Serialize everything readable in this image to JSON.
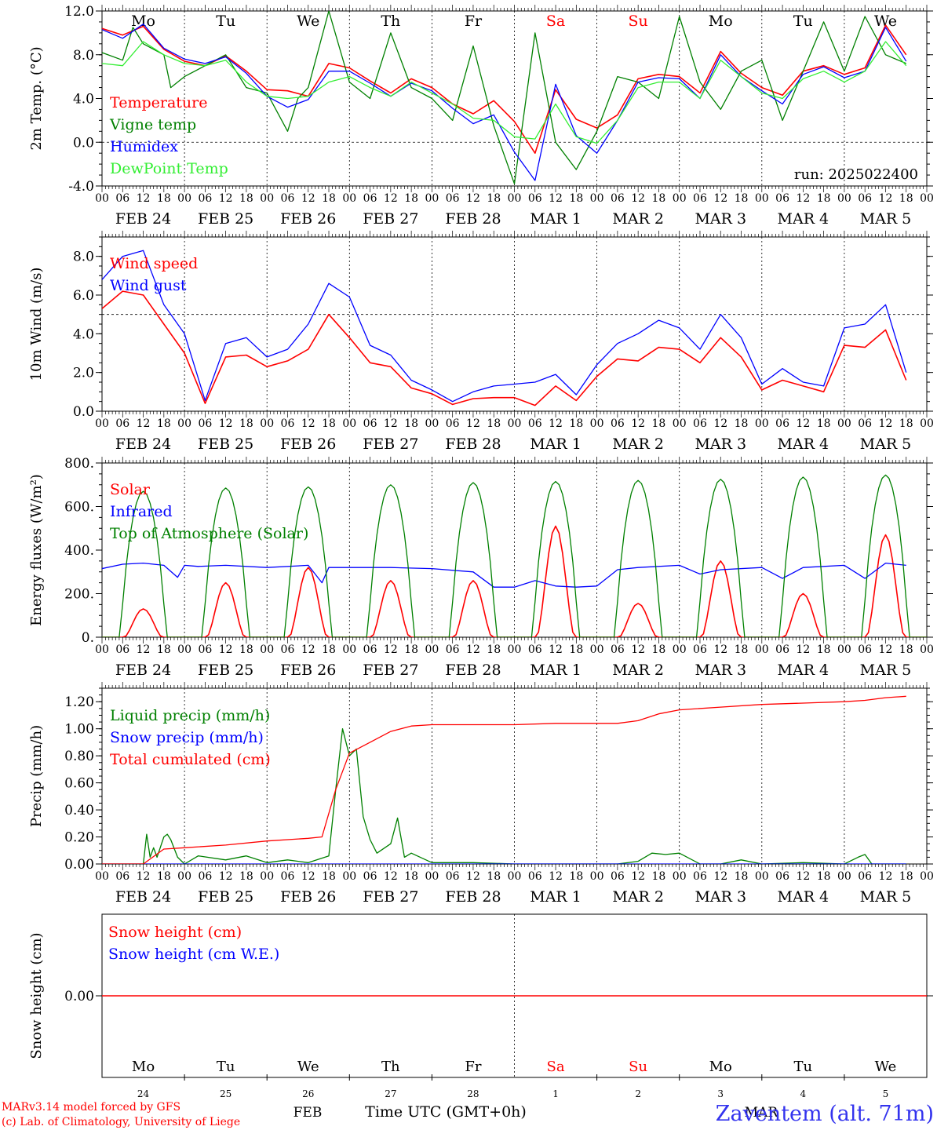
{
  "colors": {
    "red": "#ff0000",
    "green": "#008000",
    "blue": "#0000ff",
    "lightgreen": "#33ee33"
  },
  "x_axis": {
    "hour_ticks": [
      "00",
      "06",
      "12",
      "18"
    ],
    "date_labels": [
      "FEB 24",
      "FEB 25",
      "FEB 26",
      "FEB 27",
      "FEB 28",
      "MAR  1",
      "MAR  2",
      "MAR  3",
      "MAR  4",
      "MAR  5"
    ],
    "weekdays": [
      "Mo",
      "Tu",
      "We",
      "Th",
      "Fr",
      "Sa",
      "Su",
      "Mo",
      "Tu",
      "We"
    ],
    "weekday_colors": [
      "#000000",
      "#000000",
      "#000000",
      "#000000",
      "#000000",
      "#ff0000",
      "#ff0000",
      "#000000",
      "#000000",
      "#000000"
    ],
    "day_numbers": [
      "24",
      "25",
      "26",
      "27",
      "28",
      "1",
      "2",
      "3",
      "4",
      "5"
    ],
    "month_labels": [
      "FEB",
      "MAR"
    ],
    "title": "Time UTC (GMT+0h)"
  },
  "footer": {
    "model": "MARv3.14 model forced by GFS",
    "lab": "(c) Lab. of Climatology, University of Liege",
    "station": "Zaventem (alt. 71m)"
  },
  "chart_data": [
    {
      "type": "line",
      "ylabel": "2m Temp. (°C)",
      "ylim": [
        -4,
        12
      ],
      "yticks": [
        "-4.0",
        "0.0",
        "4.0",
        "8.0",
        "12.0"
      ],
      "annotation": "run: 2025022400",
      "show_weekdays": true,
      "series": [
        {
          "name": "Temperature",
          "color": "#ff0000",
          "x": [
            0,
            6,
            12,
            18,
            24,
            30,
            36,
            42,
            48,
            54,
            60,
            66,
            72,
            78,
            84,
            90,
            96,
            102,
            108,
            114,
            120,
            126,
            132,
            138,
            144,
            150,
            156,
            162,
            168,
            174,
            180,
            186,
            192,
            198,
            204,
            210,
            216,
            222,
            228,
            234
          ],
          "values": [
            10.4,
            9.8,
            10.6,
            8.5,
            7.4,
            7.0,
            7.9,
            6.5,
            4.8,
            4.7,
            4.2,
            7.2,
            6.8,
            5.6,
            4.5,
            5.8,
            5.0,
            3.5,
            2.6,
            3.8,
            1.9,
            -1.0,
            4.8,
            2.1,
            1.3,
            2.5,
            5.8,
            6.2,
            6.0,
            4.5,
            8.3,
            6.3,
            5.0,
            4.3,
            6.5,
            7.0,
            6.2,
            6.8,
            10.7,
            8.0
          ]
        },
        {
          "name": "Vigne temp",
          "color": "#008000",
          "x": [
            0,
            6,
            9,
            12,
            18,
            20,
            24,
            30,
            36,
            42,
            48,
            54,
            57,
            60,
            66,
            72,
            78,
            84,
            90,
            96,
            102,
            108,
            114,
            120,
            126,
            132,
            138,
            144,
            150,
            156,
            162,
            168,
            174,
            180,
            186,
            192,
            198,
            204,
            210,
            216,
            222,
            228,
            234
          ],
          "values": [
            8.2,
            7.5,
            10.5,
            9.0,
            8.0,
            5.0,
            6.0,
            7.0,
            8.0,
            5.0,
            4.5,
            1.0,
            4.0,
            5.0,
            12.0,
            5.5,
            4.0,
            10.0,
            5.0,
            4.0,
            2.0,
            8.8,
            1.5,
            -3.8,
            10.0,
            0.0,
            -2.5,
            1.0,
            6.0,
            5.5,
            4.0,
            11.5,
            5.5,
            3.0,
            6.5,
            7.5,
            2.0,
            6.5,
            11.0,
            6.5,
            11.5,
            8.0,
            7.2
          ]
        },
        {
          "name": "Humidex",
          "color": "#0000ff",
          "x": [
            0,
            6,
            12,
            18,
            24,
            30,
            36,
            42,
            48,
            54,
            60,
            66,
            72,
            78,
            84,
            90,
            96,
            102,
            108,
            114,
            120,
            126,
            132,
            138,
            144,
            150,
            156,
            162,
            168,
            174,
            180,
            186,
            192,
            198,
            204,
            210,
            216,
            222,
            228,
            234
          ],
          "values": [
            10.3,
            9.5,
            10.8,
            8.6,
            7.6,
            7.2,
            7.8,
            6.3,
            4.2,
            3.2,
            3.9,
            6.5,
            6.5,
            5.4,
            4.2,
            5.4,
            4.7,
            3.1,
            1.7,
            2.5,
            -0.9,
            -3.5,
            5.3,
            0.6,
            -1.0,
            2.0,
            5.5,
            5.9,
            5.8,
            4.0,
            8.0,
            6.0,
            4.7,
            3.5,
            6.2,
            6.9,
            5.9,
            6.5,
            10.5,
            7.4
          ]
        },
        {
          "name": "DewPoint Temp",
          "color": "#33ee33",
          "x": [
            0,
            6,
            12,
            18,
            24,
            30,
            36,
            42,
            48,
            54,
            60,
            66,
            72,
            78,
            84,
            90,
            96,
            102,
            108,
            114,
            120,
            126,
            132,
            138,
            144,
            150,
            156,
            162,
            168,
            174,
            180,
            186,
            192,
            198,
            204,
            210,
            216,
            222,
            228,
            234
          ],
          "values": [
            7.2,
            7.0,
            9.2,
            8.0,
            7.2,
            7.0,
            7.5,
            5.5,
            4.2,
            4.0,
            4.2,
            5.5,
            6.0,
            5.0,
            4.2,
            5.5,
            4.5,
            3.5,
            2.2,
            2.0,
            0.5,
            0.3,
            3.5,
            0.5,
            -0.1,
            2.0,
            5.0,
            5.5,
            5.5,
            4.0,
            7.5,
            6.0,
            4.5,
            4.0,
            5.8,
            6.5,
            5.5,
            6.5,
            9.2,
            7.0
          ]
        }
      ]
    },
    {
      "type": "line",
      "ylabel": "10m Wind (m/s)",
      "ylim": [
        0,
        9
      ],
      "yticks": [
        "0.0",
        "2.0",
        "4.0",
        "6.0",
        "8.0"
      ],
      "ref_line": 5,
      "series": [
        {
          "name": "Wind speed",
          "color": "#ff0000",
          "x": [
            0,
            6,
            12,
            18,
            24,
            30,
            36,
            42,
            48,
            54,
            60,
            66,
            72,
            78,
            84,
            90,
            96,
            102,
            108,
            114,
            120,
            126,
            132,
            138,
            144,
            150,
            156,
            162,
            168,
            174,
            180,
            186,
            192,
            198,
            204,
            210,
            216,
            222,
            228,
            234
          ],
          "values": [
            5.3,
            6.2,
            6.0,
            4.5,
            3.0,
            0.4,
            2.8,
            2.9,
            2.3,
            2.6,
            3.2,
            5.0,
            3.8,
            2.5,
            2.3,
            1.2,
            0.9,
            0.35,
            0.65,
            0.7,
            0.7,
            0.3,
            1.3,
            0.55,
            1.8,
            2.7,
            2.6,
            3.3,
            3.2,
            2.5,
            3.8,
            2.8,
            1.1,
            1.6,
            1.3,
            1.0,
            3.4,
            3.3,
            4.2,
            1.6
          ]
        },
        {
          "name": "Wind gust",
          "color": "#0000ff",
          "x": [
            0,
            6,
            12,
            18,
            24,
            30,
            36,
            42,
            48,
            54,
            60,
            66,
            72,
            78,
            84,
            90,
            96,
            102,
            108,
            114,
            120,
            126,
            132,
            138,
            144,
            150,
            156,
            162,
            168,
            174,
            180,
            186,
            192,
            198,
            204,
            210,
            216,
            222,
            228,
            234
          ],
          "values": [
            6.8,
            8.0,
            8.3,
            5.5,
            4.0,
            0.55,
            3.5,
            3.8,
            2.8,
            3.2,
            4.5,
            6.6,
            5.9,
            3.4,
            2.9,
            1.6,
            1.1,
            0.5,
            1.0,
            1.3,
            1.4,
            1.5,
            1.9,
            0.85,
            2.4,
            3.5,
            4.0,
            4.7,
            4.3,
            3.2,
            5.0,
            3.8,
            1.4,
            2.2,
            1.5,
            1.3,
            4.3,
            4.5,
            5.5,
            2.0
          ]
        }
      ]
    },
    {
      "type": "line",
      "ylabel": "Energy fluxes (W/m²)",
      "ylim": [
        0,
        800
      ],
      "yticks": [
        "0.",
        "200.",
        "400.",
        "600.",
        "800."
      ],
      "series": [
        {
          "name": "Solar",
          "color": "#ff0000",
          "peaks": [
            130,
            250,
            320,
            260,
            260,
            510,
            155,
            350,
            200,
            470
          ],
          "peak_hour": 12
        },
        {
          "name": "Infrared",
          "color": "#0000ff",
          "x": [
            0,
            6,
            12,
            18,
            22,
            24,
            28,
            36,
            48,
            60,
            64,
            66,
            72,
            84,
            96,
            108,
            114,
            120,
            126,
            132,
            138,
            144,
            150,
            156,
            168,
            174,
            180,
            192,
            198,
            204,
            216,
            222,
            228,
            234
          ],
          "values": [
            315,
            335,
            340,
            330,
            275,
            330,
            325,
            330,
            320,
            330,
            250,
            320,
            320,
            320,
            315,
            300,
            230,
            230,
            260,
            235,
            230,
            235,
            310,
            320,
            330,
            290,
            310,
            320,
            270,
            320,
            330,
            270,
            340,
            330
          ]
        },
        {
          "name": "Top of Atmosphere (Solar)",
          "color": "#008000",
          "peaks": [
            670,
            685,
            690,
            700,
            710,
            715,
            720,
            725,
            735,
            745
          ],
          "peak_hour": 12
        }
      ]
    },
    {
      "type": "line",
      "ylabel": "Precip (mm/h)",
      "ylim": [
        0,
        1.3
      ],
      "yticks": [
        "0.00",
        "0.20",
        "0.40",
        "0.60",
        "0.80",
        "1.00",
        "1.20"
      ],
      "series": [
        {
          "name": "Liquid precip (mm/h)",
          "color": "#008000",
          "x": [
            0,
            12,
            13,
            14,
            15,
            16,
            18,
            19,
            20,
            22,
            24,
            28,
            36,
            42,
            48,
            54,
            60,
            66,
            68,
            70,
            72,
            74,
            76,
            78,
            80,
            84,
            86,
            88,
            90,
            96,
            108,
            120,
            150,
            156,
            160,
            164,
            168,
            174,
            180,
            186,
            192,
            204,
            216,
            220,
            222,
            224,
            234
          ],
          "values": [
            0,
            0,
            0.22,
            0.05,
            0.12,
            0.05,
            0.2,
            0.22,
            0.18,
            0.05,
            0,
            0.06,
            0.03,
            0.06,
            0.01,
            0.03,
            0.01,
            0.06,
            0.55,
            1.0,
            0.8,
            0.85,
            0.35,
            0.18,
            0.08,
            0.15,
            0.34,
            0.05,
            0.08,
            0.01,
            0.01,
            0.0,
            0.0,
            0.02,
            0.08,
            0.07,
            0.08,
            0.0,
            0.0,
            0.03,
            0.0,
            0.01,
            0.0,
            0.05,
            0.07,
            0.0,
            0.0
          ]
        },
        {
          "name": "Snow precip (mm/h)",
          "color": "#0000ff",
          "x": [
            0,
            234
          ],
          "values": [
            0,
            0
          ]
        },
        {
          "name": "Total cumulated (cm)",
          "color": "#ff0000",
          "x": [
            0,
            12,
            18,
            24,
            36,
            48,
            60,
            64,
            68,
            72,
            78,
            84,
            90,
            96,
            108,
            120,
            132,
            144,
            150,
            156,
            162,
            168,
            180,
            192,
            204,
            216,
            222,
            228,
            234
          ],
          "values": [
            0,
            0,
            0.11,
            0.12,
            0.14,
            0.17,
            0.19,
            0.2,
            0.55,
            0.82,
            0.9,
            0.98,
            1.02,
            1.03,
            1.03,
            1.03,
            1.04,
            1.04,
            1.04,
            1.06,
            1.11,
            1.14,
            1.16,
            1.18,
            1.19,
            1.2,
            1.21,
            1.23,
            1.24
          ]
        }
      ]
    },
    {
      "type": "line",
      "ylabel": "Snow height (cm)",
      "ylim": [
        -1,
        1
      ],
      "yticks": [
        "0.00"
      ],
      "series": [
        {
          "name": "Snow height (cm)",
          "color": "#ff0000",
          "x": [
            0,
            240
          ],
          "values": [
            0,
            0
          ]
        },
        {
          "name": "Snow height (cm W.E.)",
          "color": "#0000ff",
          "x": [],
          "values": []
        }
      ]
    }
  ]
}
